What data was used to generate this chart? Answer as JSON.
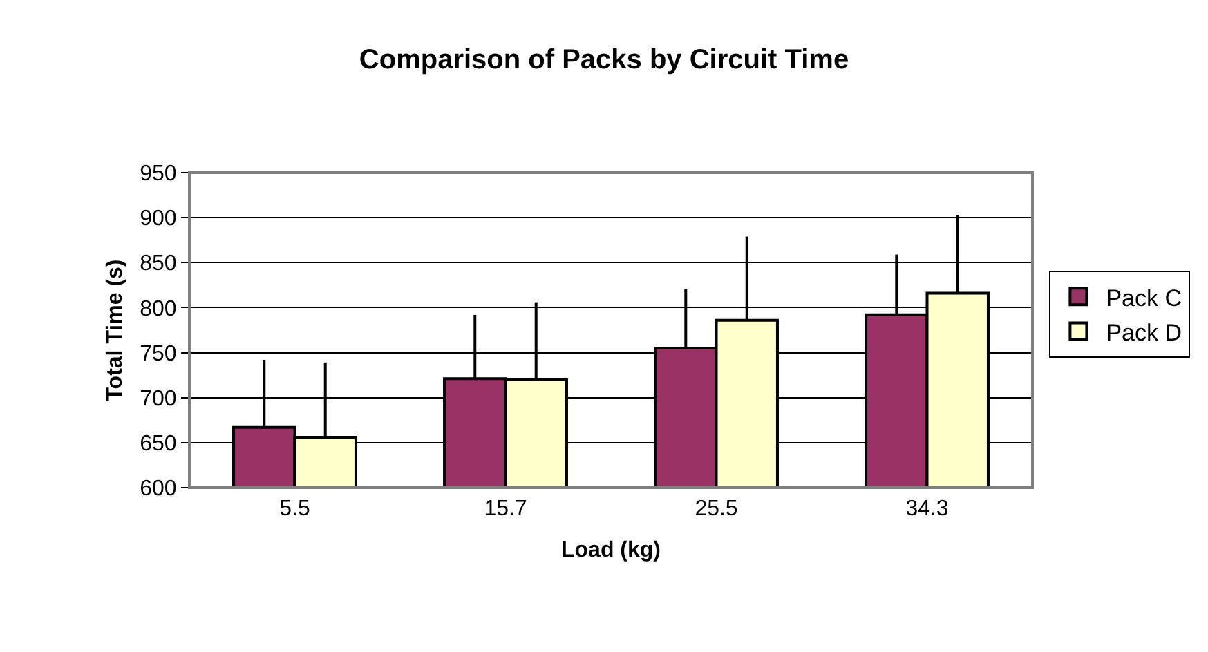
{
  "chart_data": {
    "type": "bar",
    "title": "Comparison of Packs by Circuit Time",
    "xlabel": "Load (kg)",
    "ylabel": "Total Time (s)",
    "categories": [
      "5.5",
      "15.7",
      "25.5",
      "34.3"
    ],
    "series": [
      {
        "name": "Pack C",
        "color": "#993366",
        "values": [
          667,
          721,
          755,
          792
        ],
        "errors": [
          [
            667,
            742
          ],
          [
            721,
            792
          ],
          [
            755,
            821
          ],
          [
            792,
            859
          ]
        ]
      },
      {
        "name": "Pack D",
        "color": "#ffffcc",
        "values": [
          656,
          720,
          786,
          816
        ],
        "errors": [
          [
            656,
            739
          ],
          [
            720,
            806
          ],
          [
            786,
            879
          ],
          [
            816,
            903
          ]
        ]
      }
    ],
    "ylim": [
      600,
      950
    ],
    "yticks": [
      600,
      650,
      700,
      750,
      800,
      850,
      900,
      950
    ],
    "grid": "y",
    "legend": "right"
  }
}
